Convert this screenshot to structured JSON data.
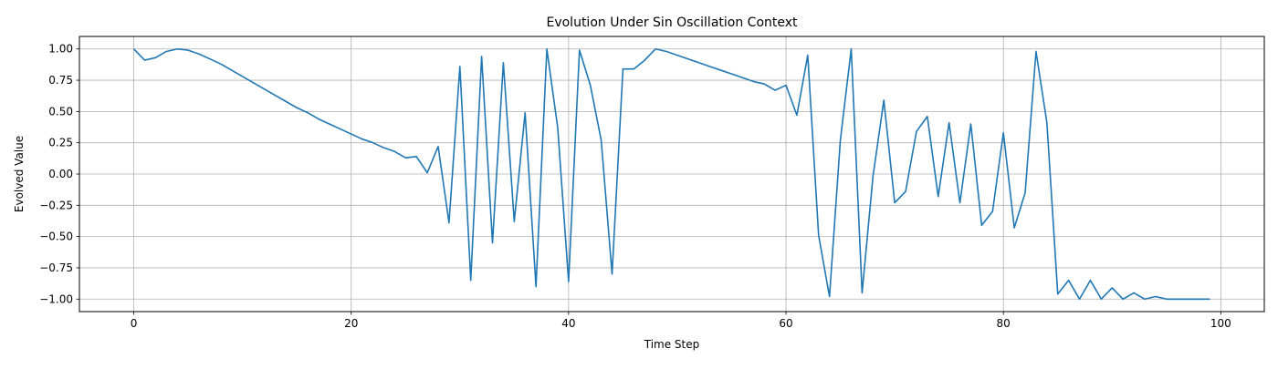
{
  "chart_data": {
    "type": "line",
    "title": "Evolution Under Sin Oscillation Context",
    "xlabel": "Time Step",
    "ylabel": "Evolved Value",
    "xlim": [
      -5,
      104
    ],
    "ylim": [
      -1.1,
      1.1
    ],
    "xticks": [
      0,
      20,
      40,
      60,
      80,
      100
    ],
    "xtick_labels": [
      "0",
      "20",
      "40",
      "60",
      "80",
      "100"
    ],
    "yticks": [
      1.0,
      0.75,
      0.5,
      0.25,
      0.0,
      -0.25,
      -0.5,
      -0.75,
      -1.0
    ],
    "ytick_labels": [
      "1.00",
      "0.75",
      "0.50",
      "0.25",
      "0.00",
      "−0.25",
      "−0.50",
      "−0.75",
      "−1.00"
    ],
    "grid": true,
    "line_color": "#1f77b4",
    "series": [
      {
        "x": [
          0,
          1,
          2,
          3,
          4,
          5,
          6,
          7,
          8,
          9,
          10,
          11,
          12,
          13,
          14,
          15,
          16,
          17,
          18,
          19,
          20,
          21,
          22,
          23,
          24,
          25,
          26,
          27,
          28,
          29,
          30,
          31,
          32,
          33,
          34,
          35,
          36,
          37,
          38,
          39,
          40,
          41,
          42,
          43,
          44,
          45,
          46,
          47,
          48,
          49,
          50,
          51,
          52,
          53,
          54,
          55,
          56,
          57,
          58,
          59,
          60,
          61,
          62,
          63,
          64,
          65,
          66,
          67,
          68,
          69,
          70,
          71,
          72,
          73,
          74,
          75,
          76,
          77,
          78,
          79,
          80,
          81,
          82,
          83,
          84,
          85,
          86,
          87,
          88,
          89,
          90,
          91,
          92,
          93,
          94,
          95,
          96,
          97,
          98,
          99
        ],
        "y": [
          1.0,
          0.91,
          0.93,
          0.98,
          1.0,
          0.99,
          0.96,
          0.92,
          0.88,
          0.83,
          0.78,
          0.73,
          0.68,
          0.63,
          0.58,
          0.53,
          0.49,
          0.44,
          0.4,
          0.36,
          0.32,
          0.28,
          0.25,
          0.21,
          0.18,
          0.13,
          0.14,
          0.01,
          0.22,
          -0.39,
          0.86,
          -0.85,
          0.94,
          -0.55,
          0.89,
          -0.38,
          0.49,
          -0.9,
          1.0,
          0.37,
          -0.86,
          0.99,
          0.71,
          0.27,
          -0.8,
          0.84,
          0.84,
          0.91,
          1.0,
          0.98,
          0.95,
          0.92,
          0.89,
          0.86,
          0.83,
          0.8,
          0.77,
          0.74,
          0.72,
          0.67,
          0.71,
          0.47,
          0.95,
          -0.49,
          -0.98,
          0.27,
          1.0,
          -0.95,
          -0.02,
          0.59,
          -0.23,
          -0.14,
          0.34,
          0.46,
          -0.18,
          0.41,
          -0.23,
          0.4,
          -0.41,
          -0.3,
          0.33,
          -0.43,
          -0.15,
          0.98,
          0.41,
          -0.96,
          -0.85,
          -1.0,
          -0.85,
          -1.0,
          -0.91,
          -1.0,
          -0.95,
          -1.0,
          -0.98,
          -1.0,
          -1.0,
          -1.0,
          -1.0,
          -1.0
        ]
      }
    ]
  }
}
